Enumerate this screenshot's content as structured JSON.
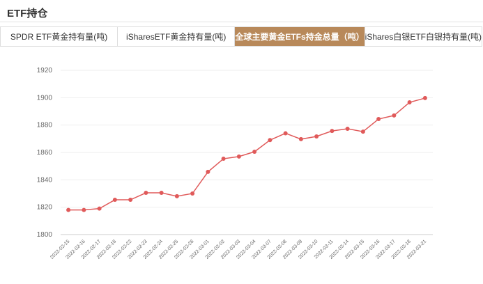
{
  "header": {
    "title": "ETF持仓"
  },
  "tabs": [
    "SPDR ETF黄金持有量(吨)",
    "iSharesETF黄金持有量(吨)",
    "全球主要黄金ETFs持金总量（吨）",
    "iShares白银ETF白银持有量(吨)"
  ],
  "active_tab": 2,
  "chart_data": {
    "type": "line",
    "categories": [
      "2022-02-15",
      "2022-02-16",
      "2022-02-17",
      "2022-02-18",
      "2022-02-22",
      "2022-02-23",
      "2022-02-24",
      "2022-02-25",
      "2022-02-28",
      "2022-03-01",
      "2022-03-02",
      "2022-03-03",
      "2022-03-04",
      "2022-03-07",
      "2022-03-08",
      "2022-03-09",
      "2022-03-10",
      "2022-03-11",
      "2022-03-14",
      "2022-03-15",
      "2022-03-16",
      "2022-03-17",
      "2022-03-18",
      "2022-03-21"
    ],
    "values": [
      1818,
      1818,
      1819,
      1825.4,
      1825.4,
      1830.5,
      1830.5,
      1828,
      1830,
      1845.8,
      1855.4,
      1857,
      1860.5,
      1869,
      1874,
      1869.7,
      1871.7,
      1875.7,
      1877.3,
      1875.2,
      1884.4,
      1887,
      1896.6,
      1899.7
    ],
    "color": "#e05a5a",
    "ylim": [
      1800,
      1920
    ],
    "yticks": [
      1800,
      1820,
      1840,
      1860,
      1880,
      1900,
      1920
    ],
    "grid": true
  }
}
